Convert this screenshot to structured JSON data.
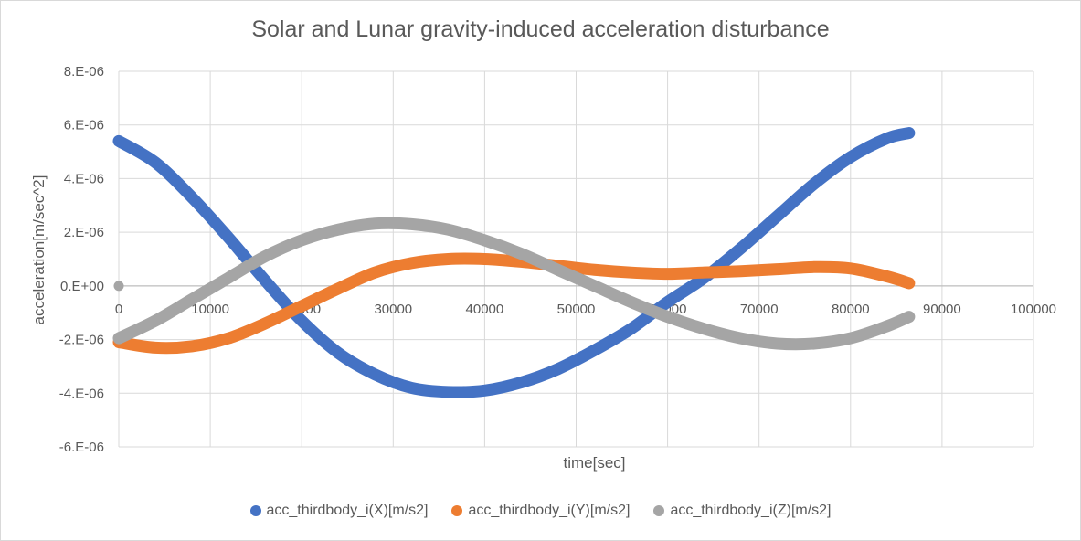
{
  "chart_data": {
    "type": "scatter",
    "title": "Solar and Lunar gravity-induced acceleration disturbance",
    "xlabel": "time[sec]",
    "ylabel": "acceleration[m/sec^2]",
    "xlim": [
      0,
      100000
    ],
    "ylim": [
      -6e-06,
      8e-06
    ],
    "x_ticks": [
      0,
      10000,
      20000,
      30000,
      40000,
      50000,
      60000,
      70000,
      80000,
      90000,
      100000
    ],
    "x_tick_labels": [
      "0",
      "10000",
      "20000",
      "30000",
      "40000",
      "50000",
      "60000",
      "70000",
      "80000",
      "90000",
      "100000"
    ],
    "y_ticks": [
      8e-06,
      6e-06,
      4e-06,
      2e-06,
      0,
      -2e-06,
      -4e-06,
      -6e-06
    ],
    "y_tick_labels": [
      "8.E-06",
      "6.E-06",
      "4.E-06",
      "2.E-06",
      "0.E+00",
      "-2.E-06",
      "-4.E-06",
      "-6.E-06"
    ],
    "grid": true,
    "legend_position": "bottom",
    "x": [
      0,
      4000,
      8000,
      12000,
      16000,
      20000,
      24000,
      28000,
      32000,
      36000,
      40000,
      44000,
      48000,
      52000,
      56000,
      60000,
      64000,
      68000,
      72000,
      76000,
      80000,
      84000,
      86400
    ],
    "series": [
      {
        "name": "acc_thirdbody_i(X)[m/s2]",
        "color": "#4472C4",
        "values": [
          5.4e-06,
          4.6e-06,
          3.3e-06,
          1.8e-06,
          2e-07,
          -1.3e-06,
          -2.5e-06,
          -3.3e-06,
          -3.8e-06,
          -3.95e-06,
          -3.9e-06,
          -3.6e-06,
          -3.1e-06,
          -2.4e-06,
          -1.6e-06,
          -6e-07,
          3e-07,
          1.4e-06,
          2.6e-06,
          3.8e-06,
          4.8e-06,
          5.5e-06,
          5.7e-06
        ]
      },
      {
        "name": "acc_thirdbody_i(Y)[m/s2]",
        "color": "#ED7D31",
        "values": [
          -2.1e-06,
          -2.3e-06,
          -2.25e-06,
          -1.95e-06,
          -1.4e-06,
          -7.5e-07,
          -1e-07,
          5e-07,
          8.5e-07,
          1e-06,
          1e-06,
          9e-07,
          7.5e-07,
          6e-07,
          5e-07,
          4.5e-07,
          5e-07,
          5.5e-07,
          6.2e-07,
          7e-07,
          6.5e-07,
          3.5e-07,
          1e-07
        ]
      },
      {
        "name": "acc_thirdbody_i(Z)[m/s2]",
        "color": "#A5A5A5",
        "values": [
          -1.95e-06,
          -1.3e-06,
          -5e-07,
          3e-07,
          1.1e-06,
          1.7e-06,
          2.1e-06,
          2.32e-06,
          2.3e-06,
          2.1e-06,
          1.7e-06,
          1.2e-06,
          6e-07,
          0.0,
          -6e-07,
          -1.15e-06,
          -1.6e-06,
          -1.95e-06,
          -2.15e-06,
          -2.15e-06,
          -1.95e-06,
          -1.5e-06,
          -1.15e-06
        ]
      }
    ]
  }
}
